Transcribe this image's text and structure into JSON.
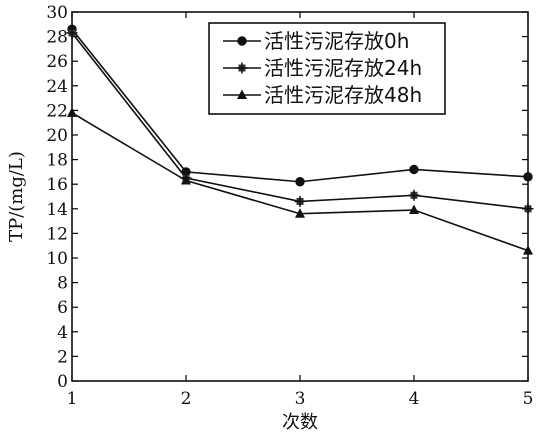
{
  "chart_data": {
    "type": "line",
    "xlabel": "次数",
    "ylabel": "TP/(mg/L)",
    "x": [
      1,
      2,
      3,
      4,
      5
    ],
    "xlim": [
      1,
      5
    ],
    "ylim": [
      0,
      30
    ],
    "yticks": [
      0,
      2,
      4,
      6,
      8,
      10,
      12,
      14,
      16,
      18,
      20,
      22,
      24,
      26,
      28,
      30
    ],
    "xticks": [
      1,
      2,
      3,
      4,
      5
    ],
    "grid": false,
    "legend_position": "top-right",
    "series": [
      {
        "name": "活性污泥存放0h",
        "marker": "circle",
        "values": [
          28.6,
          17.0,
          16.2,
          17.2,
          16.6
        ]
      },
      {
        "name": "活性污泥存放24h",
        "marker": "cross",
        "values": [
          28.3,
          16.5,
          14.6,
          15.1,
          14.0
        ]
      },
      {
        "name": "活性污泥存放48h",
        "marker": "triangle",
        "values": [
          21.8,
          16.3,
          13.6,
          13.9,
          10.6
        ]
      }
    ]
  }
}
